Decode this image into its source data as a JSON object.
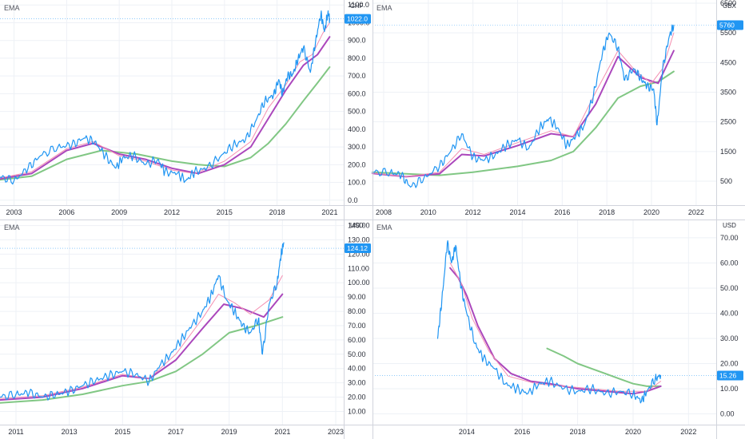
{
  "colors": {
    "price": "#2196f3",
    "ema_fast": "#f48fb1",
    "ema_mid": "#ab47bc",
    "ema_slow": "#81c784",
    "grid": "#eef1f6",
    "axis_line": "#d1d4dc",
    "last_tag": "#2196f3"
  },
  "chart_data": [
    {
      "type": "line",
      "indicator_label": "EMA",
      "currency": "CHF",
      "last_price_label": "1022.0",
      "last_price": 1022,
      "ylim": [
        -10,
        1110
      ],
      "xlim": [
        2002.2,
        2021.8
      ],
      "y_ticks": [
        "0.0",
        "100.0",
        "200.0",
        "300.0",
        "400.0",
        "500.0",
        "600.0",
        "700.0",
        "800.0",
        "900.0",
        "1000.0",
        "1100.0"
      ],
      "x_ticks": [
        "2003",
        "2006",
        "2009",
        "2012",
        "2015",
        "2018",
        "2021"
      ],
      "series": [
        {
          "role": "price",
          "x": [
            2002.2,
            2003.0,
            2003.8,
            2004.5,
            2005.5,
            2006.3,
            2007.0,
            2007.6,
            2008.2,
            2008.8,
            2009.2,
            2009.8,
            2010.5,
            2011.2,
            2011.6,
            2012.3,
            2012.8,
            2013.3,
            2014.0,
            2014.8,
            2015.5,
            2016.2,
            2016.8,
            2017.3,
            2017.8,
            2018.1,
            2018.3,
            2018.6,
            2018.9,
            2019.2,
            2019.5,
            2019.9,
            2020.2,
            2020.5,
            2020.7,
            2020.9,
            2021.0
          ],
          "y": [
            130,
            110,
            180,
            250,
            300,
            310,
            350,
            330,
            250,
            180,
            240,
            250,
            200,
            230,
            160,
            150,
            110,
            160,
            180,
            250,
            310,
            340,
            450,
            560,
            590,
            680,
            600,
            700,
            710,
            800,
            860,
            720,
            900,
            1050,
            950,
            1060,
            1022
          ]
        },
        {
          "role": "ema_fast",
          "x": [
            2002.2,
            2004.0,
            2006.0,
            2007.5,
            2009.0,
            2010.5,
            2012.0,
            2013.3,
            2015.0,
            2016.5,
            2017.5,
            2018.5,
            2019.3,
            2020.0,
            2020.6,
            2021.0
          ],
          "y": [
            125,
            160,
            290,
            330,
            250,
            220,
            170,
            150,
            220,
            330,
            520,
            650,
            780,
            820,
            940,
            1000
          ]
        },
        {
          "role": "ema_mid",
          "x": [
            2002.2,
            2004.0,
            2006.0,
            2007.5,
            2009.0,
            2010.5,
            2012.0,
            2013.5,
            2015.0,
            2016.5,
            2017.5,
            2018.5,
            2019.5,
            2020.3,
            2021.0
          ],
          "y": [
            120,
            150,
            280,
            320,
            260,
            230,
            180,
            150,
            200,
            300,
            460,
            620,
            760,
            820,
            920
          ]
        },
        {
          "role": "ema_slow",
          "x": [
            2002.2,
            2004.0,
            2006.0,
            2008.0,
            2010.0,
            2012.0,
            2013.5,
            2015.0,
            2016.5,
            2017.5,
            2018.5,
            2019.5,
            2020.3,
            2021.0
          ],
          "y": [
            115,
            135,
            230,
            280,
            260,
            220,
            200,
            190,
            240,
            320,
            430,
            560,
            660,
            750
          ]
        }
      ]
    },
    {
      "type": "line",
      "indicator_label": "EMA",
      "currency": "GBX",
      "last_price_label": "5760",
      "last_price": 5760,
      "ylim": [
        -200,
        6500
      ],
      "xlim": [
        2007.5,
        2022.9
      ],
      "y_ticks": [
        "500",
        "1500",
        "2500",
        "3500",
        "4500",
        "5500",
        "6500"
      ],
      "x_ticks": [
        "2008",
        "2010",
        "2012",
        "2014",
        "2016",
        "2018",
        "2020",
        "2022"
      ],
      "series": [
        {
          "role": "price",
          "x": [
            2007.5,
            2008.3,
            2008.8,
            2009.2,
            2009.8,
            2010.5,
            2011.0,
            2011.5,
            2012.0,
            2012.5,
            2013.0,
            2013.5,
            2014.0,
            2014.5,
            2015.0,
            2015.4,
            2015.8,
            2016.2,
            2016.6,
            2017.0,
            2017.4,
            2017.8,
            2018.1,
            2018.5,
            2018.8,
            2019.2,
            2019.5,
            2019.8,
            2020.1,
            2020.25,
            2020.5,
            2020.8,
            2021.0
          ],
          "y": [
            800,
            800,
            700,
            300,
            600,
            1000,
            1500,
            2100,
            1300,
            1200,
            1400,
            1700,
            1900,
            1600,
            2300,
            2600,
            2300,
            1700,
            2000,
            2400,
            3400,
            4800,
            5500,
            5000,
            3900,
            4300,
            4000,
            3700,
            3600,
            2400,
            4300,
            5400,
            5760
          ]
        },
        {
          "role": "ema_fast",
          "x": [
            2007.5,
            2009.0,
            2010.5,
            2011.5,
            2012.5,
            2014.0,
            2015.5,
            2016.5,
            2017.5,
            2018.5,
            2019.3,
            2020.0,
            2020.5,
            2021.0
          ],
          "y": [
            780,
            650,
            800,
            1600,
            1400,
            1800,
            2200,
            2000,
            3500,
            4900,
            4200,
            3800,
            4300,
            5500
          ]
        },
        {
          "role": "ema_mid",
          "x": [
            2007.5,
            2009.0,
            2010.5,
            2011.5,
            2012.5,
            2014.0,
            2015.5,
            2016.5,
            2017.5,
            2018.5,
            2019.5,
            2020.3,
            2021.0
          ],
          "y": [
            760,
            650,
            750,
            1400,
            1350,
            1700,
            2100,
            2000,
            3100,
            4700,
            4000,
            3800,
            4900
          ]
        },
        {
          "role": "ema_slow",
          "x": [
            2007.5,
            2009.0,
            2010.5,
            2012.0,
            2014.0,
            2015.5,
            2016.5,
            2017.5,
            2018.5,
            2019.5,
            2020.3,
            2021.0
          ],
          "y": [
            800,
            750,
            700,
            800,
            1000,
            1200,
            1500,
            2300,
            3300,
            3700,
            3850,
            4200
          ]
        }
      ]
    },
    {
      "type": "line",
      "indicator_label": "EMA",
      "currency": "USD",
      "last_price_label": "124.12",
      "last_price": 124.12,
      "ylim": [
        3,
        142
      ],
      "xlim": [
        2010.4,
        2023.3
      ],
      "y_ticks": [
        "10.00",
        "20.00",
        "30.00",
        "40.00",
        "50.00",
        "60.00",
        "70.00",
        "80.00",
        "90.00",
        "100.00",
        "110.00",
        "120.00",
        "130.00",
        "140.00"
      ],
      "x_ticks": [
        "2011",
        "2013",
        "2015",
        "2017",
        "2019",
        "2021",
        "2023"
      ],
      "series": [
        {
          "role": "price",
          "x": [
            2010.4,
            2011.0,
            2011.5,
            2012.0,
            2012.5,
            2013.0,
            2013.5,
            2014.0,
            2014.5,
            2015.0,
            2015.5,
            2016.0,
            2016.4,
            2016.8,
            2017.2,
            2017.6,
            2018.0,
            2018.3,
            2018.6,
            2018.9,
            2019.2,
            2019.5,
            2019.8,
            2020.1,
            2020.25,
            2020.5,
            2020.8,
            2020.95,
            2021.05
          ],
          "y": [
            20,
            22,
            23,
            20,
            22,
            24,
            28,
            32,
            35,
            38,
            36,
            31,
            42,
            50,
            60,
            70,
            80,
            90,
            105,
            88,
            80,
            70,
            65,
            75,
            50,
            85,
            100,
            120,
            128
          ]
        },
        {
          "role": "ema_fast",
          "x": [
            2010.4,
            2012.0,
            2013.5,
            2015.0,
            2016.0,
            2017.0,
            2018.0,
            2018.6,
            2019.2,
            2019.8,
            2020.5,
            2021.0
          ],
          "y": [
            19,
            21,
            27,
            36,
            33,
            50,
            75,
            92,
            86,
            78,
            88,
            105
          ]
        },
        {
          "role": "ema_mid",
          "x": [
            2010.4,
            2012.0,
            2013.5,
            2015.0,
            2016.0,
            2017.0,
            2018.0,
            2018.8,
            2019.5,
            2020.3,
            2021.0
          ],
          "y": [
            18,
            20,
            26,
            35,
            33,
            46,
            68,
            85,
            82,
            76,
            92
          ]
        },
        {
          "role": "ema_slow",
          "x": [
            2010.4,
            2012.0,
            2013.5,
            2015.0,
            2016.0,
            2017.0,
            2018.0,
            2019.0,
            2020.0,
            2021.0
          ],
          "y": [
            16,
            18,
            22,
            28,
            31,
            38,
            50,
            65,
            70,
            76
          ]
        }
      ]
    },
    {
      "type": "line",
      "indicator_label": "EMA",
      "currency": "USD",
      "last_price_label": "15.26",
      "last_price": 15.26,
      "ylim": [
        -3,
        76
      ],
      "xlim": [
        2010.6,
        2023.0
      ],
      "y_ticks": [
        "0.00",
        "10.00",
        "20.00",
        "30.00",
        "40.00",
        "50.00",
        "60.00",
        "70.00"
      ],
      "x_ticks": [
        "2014",
        "2016",
        "2018",
        "2020",
        "2022"
      ],
      "series": [
        {
          "role": "price",
          "x": [
            2012.95,
            2013.1,
            2013.3,
            2013.45,
            2013.6,
            2013.8,
            2014.0,
            2014.3,
            2014.6,
            2015.0,
            2015.4,
            2015.8,
            2016.2,
            2016.6,
            2017.0,
            2017.5,
            2018.0,
            2018.5,
            2019.0,
            2019.5,
            2020.0,
            2020.3,
            2020.5,
            2020.8,
            2021.0
          ],
          "y": [
            30,
            45,
            68,
            60,
            67,
            50,
            40,
            28,
            22,
            18,
            12,
            10,
            8,
            12,
            13,
            10,
            9,
            10,
            8,
            9,
            8,
            5,
            9,
            14,
            15.26
          ]
        },
        {
          "role": "ema_fast",
          "x": [
            2013.4,
            2013.8,
            2014.2,
            2014.8,
            2015.5,
            2016.5,
            2017.5,
            2018.5,
            2019.5,
            2020.5,
            2021.0
          ],
          "y": [
            60,
            52,
            38,
            25,
            15,
            12,
            11,
            10,
            9,
            9,
            13
          ]
        },
        {
          "role": "ema_mid",
          "x": [
            2013.4,
            2013.7,
            2014.0,
            2014.4,
            2015.0,
            2015.6,
            2016.3,
            2017.0,
            2018.0,
            2019.0,
            2020.0,
            2020.5,
            2021.0
          ],
          "y": [
            58,
            54,
            47,
            35,
            22,
            16,
            13,
            12,
            10,
            9,
            8,
            9,
            11
          ]
        },
        {
          "role": "ema_slow",
          "x": [
            2016.9,
            2017.5,
            2018.0,
            2018.5,
            2019.0,
            2019.5,
            2020.0,
            2020.5,
            2021.0
          ],
          "y": [
            26,
            23,
            20,
            18,
            16,
            14,
            12,
            11,
            11
          ]
        }
      ]
    }
  ]
}
